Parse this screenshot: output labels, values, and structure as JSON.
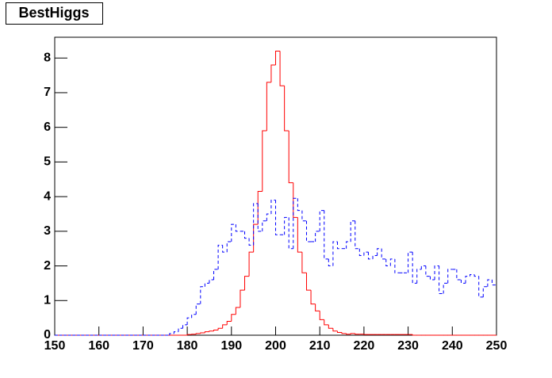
{
  "chart_data": {
    "type": "histogram",
    "title": "BestHiggs",
    "bins": [
      150,
      151,
      152,
      153,
      154,
      155,
      156,
      157,
      158,
      159,
      160,
      161,
      162,
      163,
      164,
      165,
      166,
      167,
      168,
      169,
      170,
      171,
      172,
      173,
      174,
      175,
      176,
      177,
      178,
      179,
      180,
      181,
      182,
      183,
      184,
      185,
      186,
      187,
      188,
      189,
      190,
      191,
      192,
      193,
      194,
      195,
      196,
      197,
      198,
      199,
      200,
      201,
      202,
      203,
      204,
      205,
      206,
      207,
      208,
      209,
      210,
      211,
      212,
      213,
      214,
      215,
      216,
      217,
      218,
      219,
      220,
      221,
      222,
      223,
      224,
      225,
      226,
      227,
      228,
      229,
      230,
      231,
      232,
      233,
      234,
      235,
      236,
      237,
      238,
      239,
      240,
      241,
      242,
      243,
      244,
      245,
      246,
      247,
      248,
      249,
      250
    ],
    "series": [
      {
        "color": "#ff0000",
        "linestyle": "solid",
        "values": [
          0,
          0,
          0,
          0,
          0,
          0,
          0,
          0,
          0,
          0,
          0,
          0,
          0,
          0,
          0,
          0,
          0,
          0,
          0,
          0,
          0,
          0,
          0,
          0,
          0,
          0,
          0,
          0,
          0,
          0,
          0.02,
          0.03,
          0.05,
          0.07,
          0.1,
          0.12,
          0.15,
          0.2,
          0.3,
          0.4,
          0.6,
          0.8,
          1.3,
          1.7,
          2.4,
          3.2,
          4.15,
          5.9,
          7.3,
          7.8,
          8.2,
          7.2,
          5.9,
          4.4,
          3.4,
          2.4,
          1.8,
          1.3,
          0.9,
          0.7,
          0.45,
          0.3,
          0.2,
          0.12,
          0.08,
          0.05,
          0.03,
          0.05,
          0.03,
          0.03,
          0.02,
          0.02,
          0.02,
          0.02,
          0.02,
          0.02,
          0.02,
          0.02,
          0.02,
          0.02,
          0.02,
          0,
          0,
          0,
          0,
          0,
          0,
          0,
          0,
          0,
          0,
          0,
          0,
          0,
          0,
          0,
          0,
          0,
          0,
          0
        ]
      },
      {
        "color": "#0000ff",
        "linestyle": "dashed",
        "values": [
          0,
          0,
          0,
          0,
          0,
          0,
          0,
          0,
          0,
          0,
          0,
          0,
          0,
          0,
          0,
          0,
          0,
          0,
          0,
          0,
          0,
          0,
          0,
          0,
          0,
          0,
          0.05,
          0.1,
          0.2,
          0.3,
          0.5,
          0.6,
          0.9,
          1.4,
          1.5,
          1.6,
          1.9,
          2.6,
          2.4,
          2.7,
          3.2,
          3.0,
          3.0,
          2.8,
          2.6,
          3.8,
          3.0,
          3.3,
          3.5,
          3.9,
          2.9,
          2.9,
          3.4,
          2.5,
          3.95,
          3.6,
          3.3,
          2.7,
          2.7,
          3.0,
          3.6,
          2.2,
          2.0,
          2.7,
          2.5,
          2.5,
          2.7,
          3.3,
          2.5,
          2.3,
          2.4,
          2.2,
          2.3,
          2.5,
          2.2,
          2.0,
          2.2,
          1.8,
          1.8,
          1.8,
          2.4,
          1.5,
          1.9,
          2.0,
          1.7,
          1.6,
          2.0,
          1.2,
          1.5,
          1.9,
          1.9,
          1.6,
          1.5,
          1.7,
          1.75,
          1.7,
          1.1,
          1.4,
          1.6,
          1.45
        ]
      }
    ],
    "xlim": [
      150,
      250
    ],
    "xticks": [
      150,
      160,
      170,
      180,
      190,
      200,
      210,
      220,
      230,
      240,
      250
    ],
    "ylim": [
      0,
      8.6
    ],
    "yticks": [
      0,
      1,
      2,
      3,
      4,
      5,
      6,
      7,
      8
    ]
  }
}
